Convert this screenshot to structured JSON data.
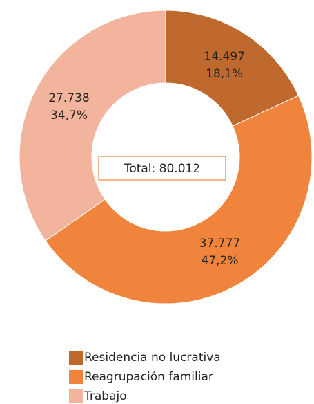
{
  "chart_data": {
    "type": "donut",
    "categories": [
      "Residencia no lucrativa",
      "Reagrupación familiar",
      "Trabajo"
    ],
    "values": [
      14497,
      37777,
      27738
    ],
    "value_labels": [
      "14.497",
      "37.777",
      "27.738"
    ],
    "percentages": [
      18.1,
      47.2,
      34.7
    ],
    "percentage_labels": [
      "18,1%",
      "47,2%",
      "34,7%"
    ],
    "colors": [
      "#c0692f",
      "#f0843c",
      "#f2b49c"
    ],
    "total_label": "Total: 80.012"
  }
}
